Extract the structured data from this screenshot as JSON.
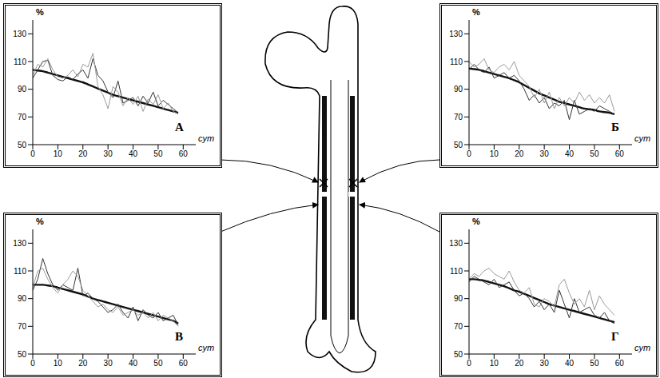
{
  "chart_data": [
    {
      "type": "line",
      "title": "А",
      "x_label": "сут",
      "y_label": "%",
      "grid": false,
      "x": [
        0,
        2,
        4,
        6,
        8,
        10,
        12,
        14,
        16,
        18,
        20,
        22,
        24,
        26,
        28,
        30,
        32,
        34,
        36,
        38,
        40,
        42,
        44,
        46,
        48,
        50,
        52,
        54,
        56,
        58
      ],
      "xlim": [
        0,
        65
      ],
      "xticks": [
        0,
        10,
        20,
        30,
        40,
        50,
        60
      ],
      "ylim": [
        50,
        140
      ],
      "yticks": [
        50,
        70,
        90,
        110,
        130
      ],
      "series": [
        {
          "type": "spline",
          "color": "#111111",
          "values": [
            104,
            103.5,
            103,
            102,
            101,
            100,
            99,
            98,
            97,
            96,
            95,
            93.5,
            92,
            90.5,
            89,
            87.5,
            86,
            85,
            84,
            83,
            82,
            81,
            80,
            79,
            78,
            77,
            76,
            75,
            74,
            73
          ]
        },
        {
          "type": "line",
          "color": "#333333",
          "values": [
            98,
            104,
            110,
            111,
            100,
            97,
            96,
            99,
            97,
            101,
            104,
            98,
            112,
            100,
            96,
            88,
            84,
            96,
            80,
            82,
            84,
            78,
            85,
            80,
            88,
            78,
            82,
            79,
            76,
            73
          ]
        },
        {
          "type": "line",
          "color": "#9a9a9a",
          "values": [
            100,
            108,
            106,
            112,
            104,
            99,
            98,
            100,
            104,
            99,
            108,
            106,
            116,
            92,
            86,
            76,
            92,
            88,
            78,
            84,
            79,
            85,
            74,
            83,
            79,
            86,
            76,
            80,
            74,
            72
          ]
        }
      ]
    },
    {
      "type": "line",
      "title": "Б",
      "x_label": "сут",
      "y_label": "%",
      "grid": false,
      "x": [
        0,
        2,
        4,
        6,
        8,
        10,
        12,
        14,
        16,
        18,
        20,
        22,
        24,
        26,
        28,
        30,
        32,
        34,
        36,
        38,
        40,
        42,
        44,
        46,
        48,
        50,
        52,
        54,
        56,
        58
      ],
      "xlim": [
        0,
        65
      ],
      "xticks": [
        0,
        10,
        20,
        30,
        40,
        50,
        60
      ],
      "ylim": [
        50,
        140
      ],
      "yticks": [
        50,
        70,
        90,
        110,
        130
      ],
      "series": [
        {
          "type": "spline",
          "color": "#111111",
          "values": [
            105,
            104.5,
            104,
            103,
            102,
            101,
            100,
            99,
            98,
            96.5,
            95,
            93,
            91,
            89,
            87,
            85.5,
            84,
            82.5,
            81,
            80,
            79,
            78,
            77,
            76,
            75.5,
            75,
            74,
            73.5,
            73,
            72
          ]
        },
        {
          "type": "line",
          "color": "#333333",
          "values": [
            104,
            108,
            104,
            102,
            106,
            98,
            100,
            102,
            98,
            100,
            96,
            90,
            82,
            86,
            80,
            84,
            76,
            80,
            78,
            82,
            68,
            82,
            72,
            74,
            76,
            74,
            78,
            76,
            74,
            72
          ]
        },
        {
          "type": "line",
          "color": "#9a9a9a",
          "values": [
            110,
            106,
            108,
            112,
            104,
            102,
            106,
            108,
            104,
            110,
            100,
            96,
            92,
            84,
            90,
            80,
            88,
            76,
            84,
            78,
            84,
            80,
            88,
            82,
            86,
            80,
            84,
            80,
            86,
            74
          ]
        }
      ]
    },
    {
      "type": "line",
      "title": "В",
      "x_label": "сут",
      "y_label": "%",
      "grid": false,
      "x": [
        0,
        2,
        4,
        6,
        8,
        10,
        12,
        14,
        16,
        18,
        20,
        22,
        24,
        26,
        28,
        30,
        32,
        34,
        36,
        38,
        40,
        42,
        44,
        46,
        48,
        50,
        52,
        54,
        56,
        58
      ],
      "xlim": [
        0,
        65
      ],
      "xticks": [
        0,
        10,
        20,
        30,
        40,
        50,
        60
      ],
      "ylim": [
        50,
        140
      ],
      "yticks": [
        50,
        70,
        90,
        110,
        130
      ],
      "series": [
        {
          "type": "spline",
          "color": "#111111",
          "values": [
            100,
            100,
            100,
            99.5,
            99,
            98,
            97,
            96,
            95,
            94,
            93,
            91.5,
            90,
            89,
            88,
            87,
            86,
            85,
            84,
            83,
            82,
            81,
            80,
            79,
            78,
            77,
            76,
            75,
            74,
            72
          ]
        },
        {
          "type": "line",
          "color": "#333333",
          "values": [
            96,
            104,
            119,
            108,
            100,
            96,
            100,
            98,
            96,
            112,
            92,
            94,
            90,
            88,
            84,
            80,
            82,
            86,
            80,
            76,
            84,
            74,
            82,
            78,
            76,
            80,
            74,
            76,
            78,
            71
          ]
        },
        {
          "type": "line",
          "color": "#9a9a9a",
          "values": [
            98,
            110,
            112,
            104,
            98,
            94,
            100,
            104,
            110,
            106,
            96,
            92,
            88,
            84,
            86,
            82,
            80,
            84,
            78,
            80,
            82,
            78,
            80,
            76,
            80,
            74,
            78,
            76,
            74,
            70
          ]
        }
      ]
    },
    {
      "type": "line",
      "title": "Г",
      "x_label": "сут",
      "y_label": "%",
      "grid": false,
      "x": [
        0,
        2,
        4,
        6,
        8,
        10,
        12,
        14,
        16,
        18,
        20,
        22,
        24,
        26,
        28,
        30,
        32,
        34,
        36,
        38,
        40,
        42,
        44,
        46,
        48,
        50,
        52,
        54,
        56,
        58
      ],
      "xlim": [
        0,
        65
      ],
      "xticks": [
        0,
        10,
        20,
        30,
        40,
        50,
        60
      ],
      "ylim": [
        50,
        140
      ],
      "yticks": [
        50,
        70,
        90,
        110,
        130
      ],
      "series": [
        {
          "type": "spline",
          "color": "#111111",
          "values": [
            104,
            104,
            103.5,
            103,
            102,
            101,
            100,
            99,
            97.5,
            96,
            95,
            93.5,
            92,
            90.5,
            89,
            87.5,
            86,
            85,
            84,
            83,
            82,
            81,
            80,
            79,
            78,
            77,
            76,
            75,
            74,
            73
          ]
        },
        {
          "type": "line",
          "color": "#333333",
          "values": [
            102,
            106,
            104,
            102,
            100,
            104,
            98,
            100,
            102,
            96,
            92,
            94,
            90,
            84,
            88,
            82,
            86,
            80,
            96,
            86,
            76,
            90,
            80,
            82,
            84,
            78,
            76,
            80,
            74,
            72
          ]
        },
        {
          "type": "line",
          "color": "#9a9a9a",
          "values": [
            104,
            108,
            106,
            110,
            112,
            108,
            106,
            104,
            110,
            102,
            96,
            94,
            98,
            86,
            84,
            90,
            88,
            84,
            100,
            104,
            94,
            86,
            90,
            84,
            96,
            82,
            92,
            86,
            82,
            78
          ]
        }
      ]
    }
  ]
}
